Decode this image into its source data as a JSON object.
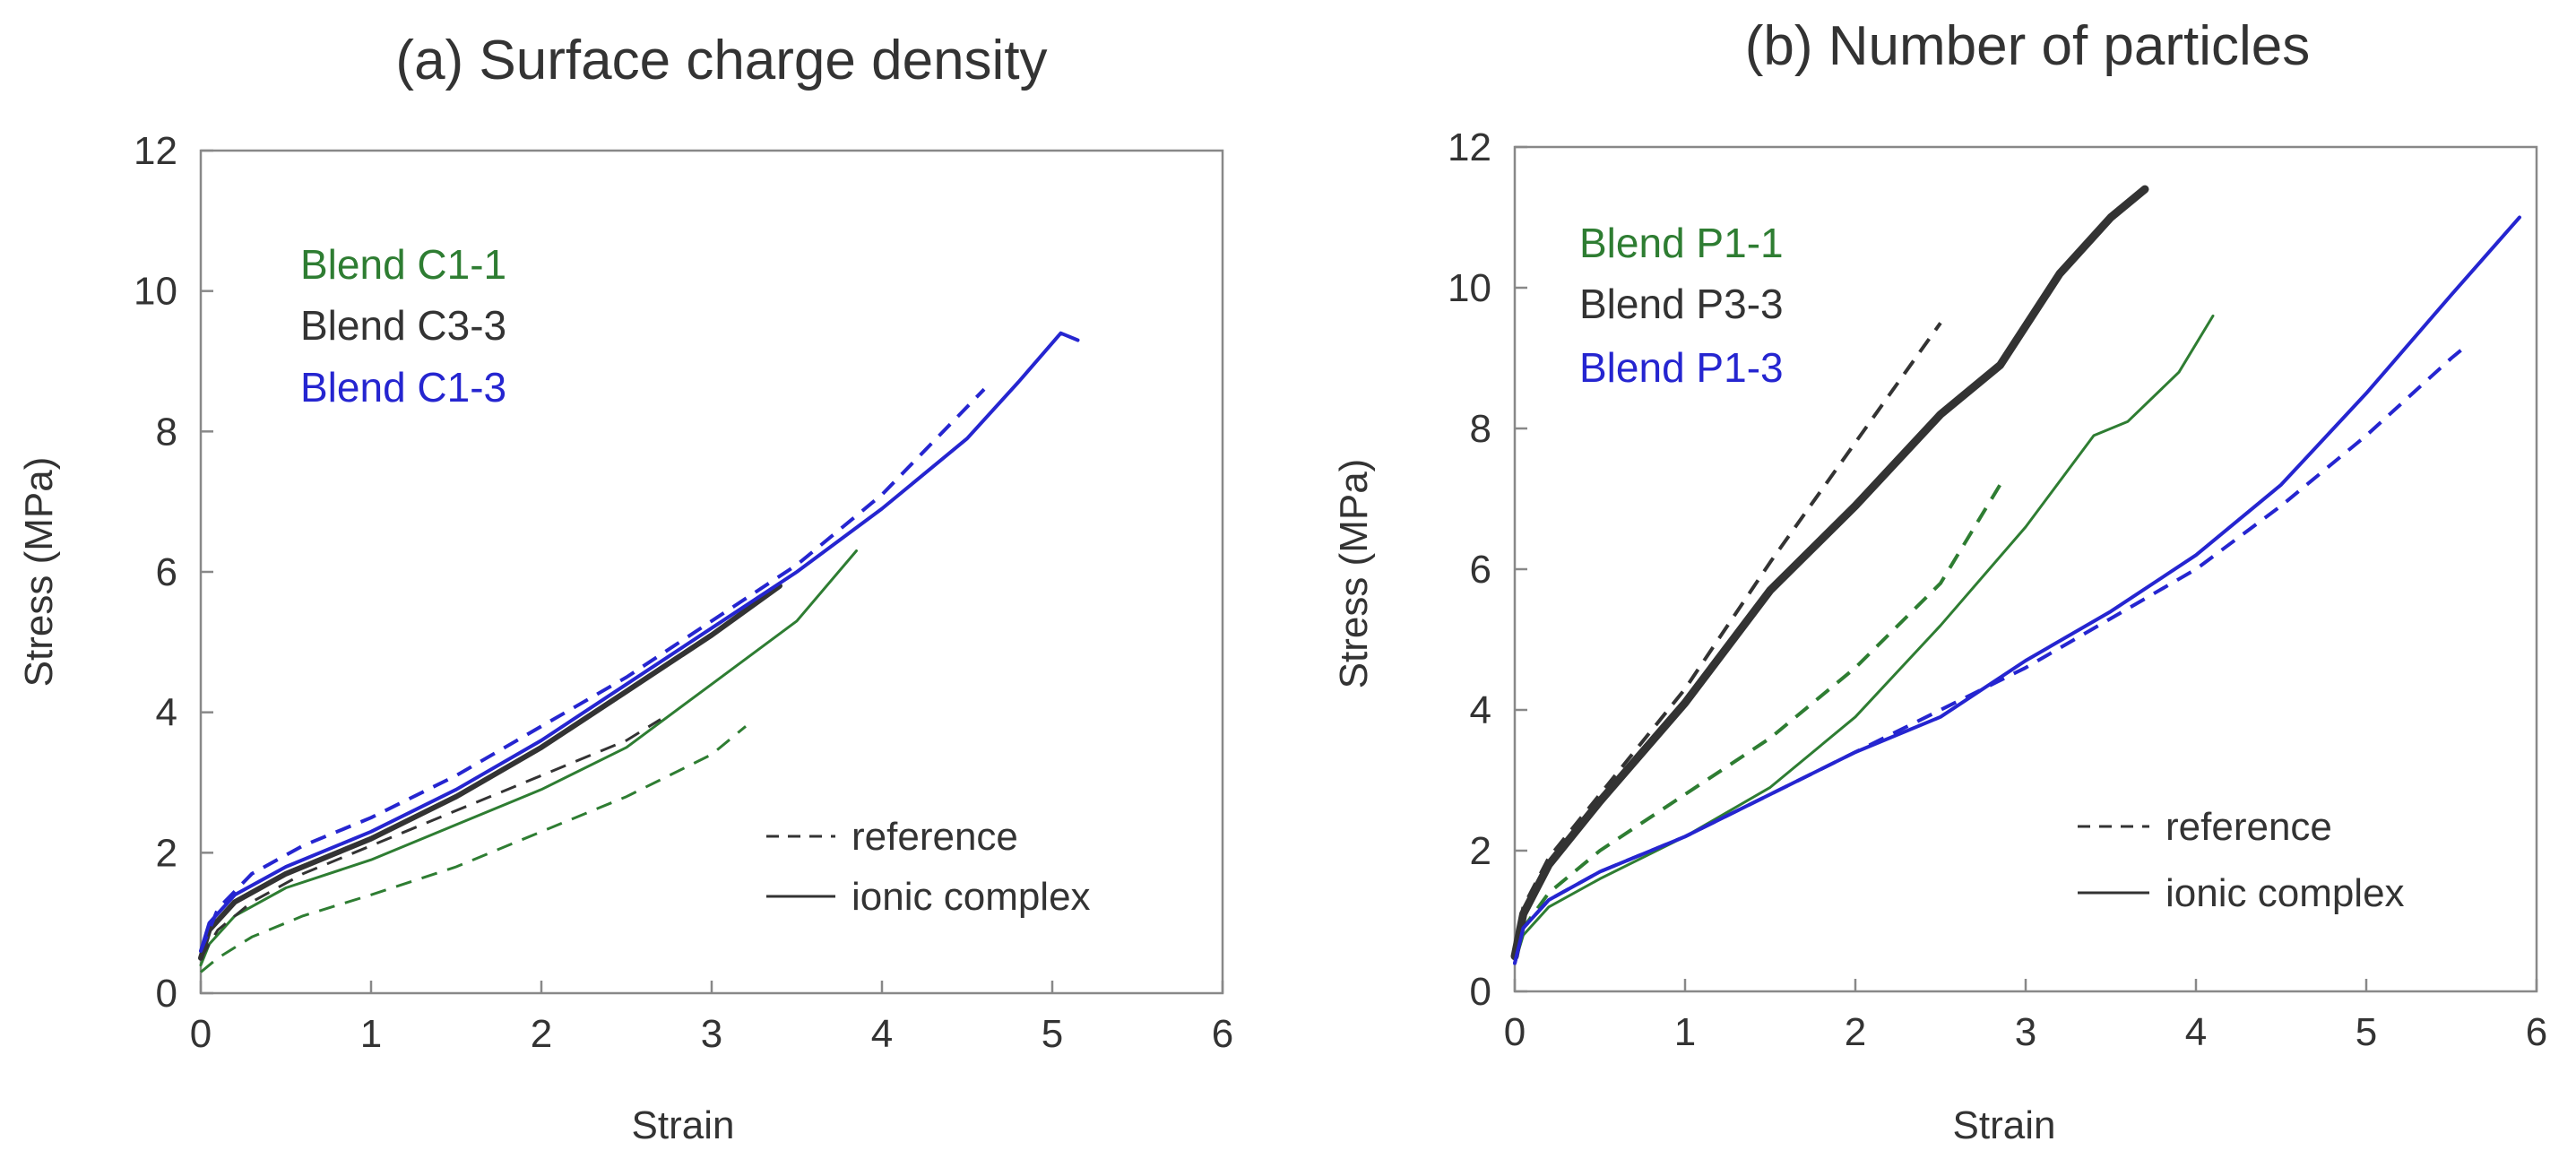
{
  "chart_data": [
    {
      "type": "line",
      "title": "(a) Surface charge density",
      "xlabel": "Strain",
      "ylabel": "Stress (MPa)",
      "xlim": [
        0,
        6
      ],
      "ylim": [
        0,
        12
      ],
      "xticks": [
        "0",
        "1",
        "2",
        "3",
        "4",
        "5",
        "6"
      ],
      "yticks": [
        "0",
        "2",
        "4",
        "6",
        "8",
        "10",
        "12"
      ],
      "legend": [
        {
          "label": "Blend C1-1",
          "color": "#2e7d32"
        },
        {
          "label": "Blend C3-3",
          "color": "#333333"
        },
        {
          "label": "Blend C1-3",
          "color": "#2525d0"
        }
      ],
      "style_legend": {
        "dashed": "reference",
        "solid": "ionic complex"
      },
      "series": [
        {
          "name": "Blend C1-1 reference",
          "color": "#2e7d32",
          "dash": true,
          "width": 3,
          "points": [
            [
              0,
              0.3
            ],
            [
              0.1,
              0.5
            ],
            [
              0.3,
              0.8
            ],
            [
              0.6,
              1.1
            ],
            [
              1,
              1.4
            ],
            [
              1.5,
              1.8
            ],
            [
              2,
              2.3
            ],
            [
              2.5,
              2.8
            ],
            [
              3,
              3.4
            ],
            [
              3.2,
              3.8
            ]
          ]
        },
        {
          "name": "Blend C1-1 ionic complex",
          "color": "#2e7d32",
          "dash": false,
          "width": 3,
          "points": [
            [
              0,
              0.4
            ],
            [
              0.05,
              0.7
            ],
            [
              0.2,
              1.1
            ],
            [
              0.5,
              1.5
            ],
            [
              1,
              1.9
            ],
            [
              1.5,
              2.4
            ],
            [
              2,
              2.9
            ],
            [
              2.5,
              3.5
            ],
            [
              3,
              4.4
            ],
            [
              3.5,
              5.3
            ],
            [
              3.85,
              6.3
            ]
          ]
        },
        {
          "name": "Blend C3-3 reference",
          "color": "#333333",
          "dash": true,
          "width": 3,
          "points": [
            [
              0,
              0.5
            ],
            [
              0.1,
              0.9
            ],
            [
              0.3,
              1.3
            ],
            [
              0.6,
              1.7
            ],
            [
              1,
              2.1
            ],
            [
              1.5,
              2.6
            ],
            [
              2,
              3.1
            ],
            [
              2.5,
              3.6
            ],
            [
              2.7,
              3.9
            ]
          ]
        },
        {
          "name": "Blend C3-3 ionic complex",
          "color": "#333333",
          "dash": false,
          "width": 6,
          "points": [
            [
              0,
              0.5
            ],
            [
              0.05,
              0.9
            ],
            [
              0.2,
              1.3
            ],
            [
              0.5,
              1.7
            ],
            [
              1,
              2.2
            ],
            [
              1.5,
              2.8
            ],
            [
              2,
              3.5
            ],
            [
              2.5,
              4.3
            ],
            [
              3,
              5.1
            ],
            [
              3.4,
              5.8
            ]
          ]
        },
        {
          "name": "Blend C1-3 reference",
          "color": "#2525d0",
          "dash": true,
          "width": 4,
          "points": [
            [
              0,
              0.6
            ],
            [
              0.1,
              1.2
            ],
            [
              0.3,
              1.7
            ],
            [
              0.6,
              2.1
            ],
            [
              1,
              2.5
            ],
            [
              1.5,
              3.1
            ],
            [
              2,
              3.8
            ],
            [
              2.5,
              4.5
            ],
            [
              3,
              5.3
            ],
            [
              3.5,
              6.1
            ],
            [
              4,
              7.1
            ],
            [
              4.6,
              8.6
            ]
          ]
        },
        {
          "name": "Blend C1-3 ionic complex",
          "color": "#2525d0",
          "dash": false,
          "width": 4,
          "points": [
            [
              0,
              0.6
            ],
            [
              0.05,
              1.0
            ],
            [
              0.2,
              1.4
            ],
            [
              0.5,
              1.8
            ],
            [
              1,
              2.3
            ],
            [
              1.5,
              2.9
            ],
            [
              2,
              3.6
            ],
            [
              2.5,
              4.4
            ],
            [
              3,
              5.2
            ],
            [
              3.5,
              6.0
            ],
            [
              4,
              6.9
            ],
            [
              4.5,
              7.9
            ],
            [
              4.8,
              8.7
            ],
            [
              5.05,
              9.4
            ],
            [
              5.15,
              9.3
            ]
          ]
        }
      ]
    },
    {
      "type": "line",
      "title": "(b) Number of particles",
      "xlabel": "Strain",
      "ylabel": "Stress (MPa)",
      "xlim": [
        0,
        6
      ],
      "ylim": [
        0,
        12
      ],
      "xticks": [
        "0",
        "1",
        "2",
        "3",
        "4",
        "5",
        "6"
      ],
      "yticks": [
        "0",
        "2",
        "4",
        "6",
        "8",
        "10",
        "12"
      ],
      "legend": [
        {
          "label": "Blend P1-1",
          "color": "#2e7d32"
        },
        {
          "label": "Blend P3-3",
          "color": "#333333"
        },
        {
          "label": "Blend P1-3",
          "color": "#2525d0"
        }
      ],
      "style_legend": {
        "dashed": "reference",
        "solid": "ionic complex"
      },
      "series": [
        {
          "name": "Blend P1-1 reference",
          "color": "#2e7d32",
          "dash": true,
          "width": 4,
          "points": [
            [
              0,
              0.5
            ],
            [
              0.05,
              0.9
            ],
            [
              0.2,
              1.4
            ],
            [
              0.5,
              2.0
            ],
            [
              1,
              2.8
            ],
            [
              1.5,
              3.6
            ],
            [
              2,
              4.6
            ],
            [
              2.5,
              5.8
            ],
            [
              2.85,
              7.2
            ]
          ]
        },
        {
          "name": "Blend P1-1 ionic complex",
          "color": "#2e7d32",
          "dash": false,
          "width": 3,
          "points": [
            [
              0,
              0.4
            ],
            [
              0.05,
              0.8
            ],
            [
              0.2,
              1.2
            ],
            [
              0.5,
              1.6
            ],
            [
              1,
              2.2
            ],
            [
              1.5,
              2.9
            ],
            [
              2,
              3.9
            ],
            [
              2.5,
              5.2
            ],
            [
              3,
              6.6
            ],
            [
              3.4,
              7.9
            ],
            [
              3.6,
              8.1
            ],
            [
              3.9,
              8.8
            ],
            [
              4.1,
              9.6
            ]
          ]
        },
        {
          "name": "Blend P3-3 reference",
          "color": "#333333",
          "dash": true,
          "width": 4,
          "points": [
            [
              0,
              0.6
            ],
            [
              0.05,
              1.2
            ],
            [
              0.2,
              1.9
            ],
            [
              0.5,
              2.8
            ],
            [
              1,
              4.3
            ],
            [
              1.5,
              6.1
            ],
            [
              2,
              7.8
            ],
            [
              2.5,
              9.5
            ]
          ]
        },
        {
          "name": "Blend P3-3 ionic complex",
          "color": "#333333",
          "dash": false,
          "width": 9,
          "points": [
            [
              0,
              0.5
            ],
            [
              0.05,
              1.1
            ],
            [
              0.2,
              1.8
            ],
            [
              0.5,
              2.7
            ],
            [
              1,
              4.1
            ],
            [
              1.5,
              5.7
            ],
            [
              2,
              6.9
            ],
            [
              2.5,
              8.2
            ],
            [
              2.85,
              8.9
            ],
            [
              3.2,
              10.2
            ],
            [
              3.5,
              11.0
            ],
            [
              3.7,
              11.4
            ]
          ]
        },
        {
          "name": "Blend P1-3 reference",
          "color": "#2525d0",
          "dash": true,
          "width": 4,
          "points": [
            [
              0,
              0.4
            ],
            [
              0.05,
              0.9
            ],
            [
              0.2,
              1.3
            ],
            [
              0.5,
              1.7
            ],
            [
              1,
              2.2
            ],
            [
              1.5,
              2.8
            ],
            [
              2,
              3.4
            ],
            [
              2.5,
              4.0
            ],
            [
              3,
              4.6
            ],
            [
              3.5,
              5.3
            ],
            [
              4,
              6.0
            ],
            [
              4.5,
              6.9
            ],
            [
              5,
              7.9
            ],
            [
              5.5,
              9.0
            ],
            [
              5.6,
              9.2
            ]
          ]
        },
        {
          "name": "Blend P1-3 ionic complex",
          "color": "#2525d0",
          "dash": false,
          "width": 4,
          "points": [
            [
              0,
              0.4
            ],
            [
              0.05,
              0.9
            ],
            [
              0.2,
              1.3
            ],
            [
              0.5,
              1.7
            ],
            [
              1,
              2.2
            ],
            [
              1.5,
              2.8
            ],
            [
              2,
              3.4
            ],
            [
              2.5,
              3.9
            ],
            [
              3,
              4.7
            ],
            [
              3.5,
              5.4
            ],
            [
              4,
              6.2
            ],
            [
              4.5,
              7.2
            ],
            [
              5,
              8.5
            ],
            [
              5.5,
              9.9
            ],
            [
              5.9,
              11.0
            ]
          ]
        }
      ]
    }
  ]
}
